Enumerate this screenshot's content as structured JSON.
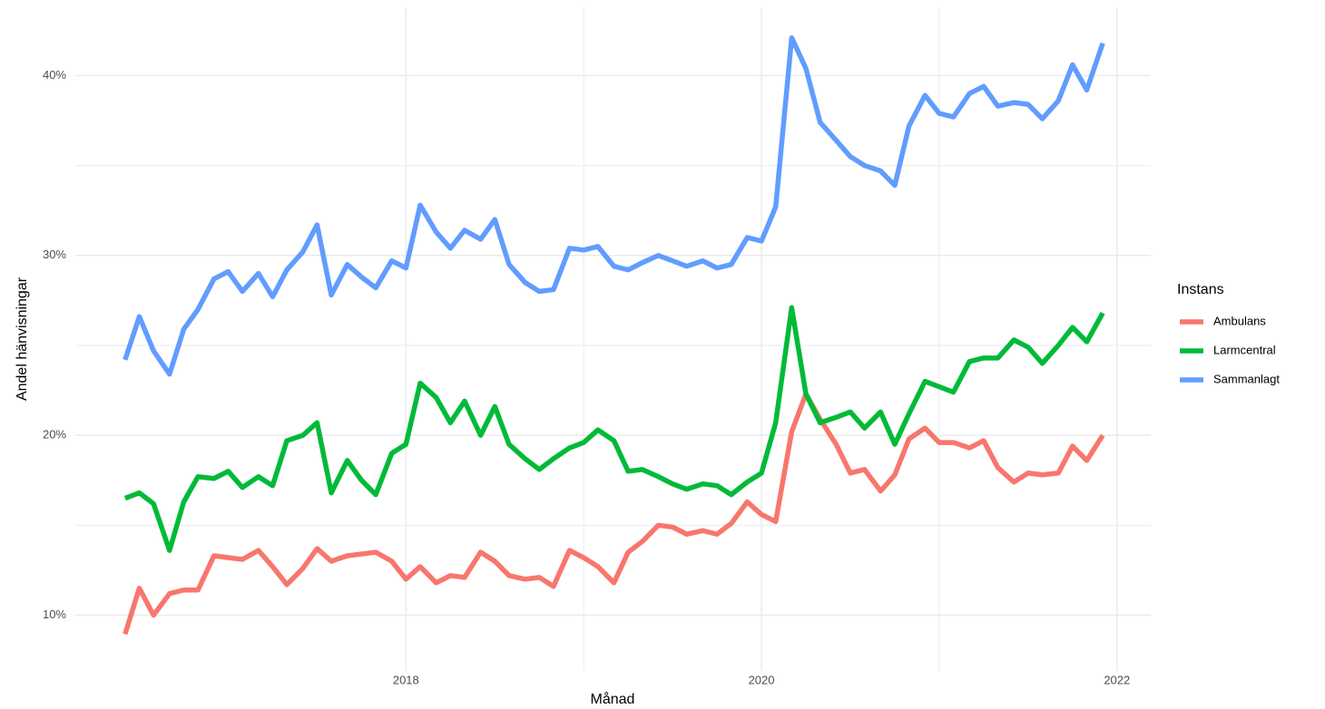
{
  "chart_data": {
    "type": "line",
    "xlabel": "Månad",
    "ylabel": "Andel hänvisningar",
    "legend_title": "Instans",
    "legend": "right",
    "grid": true,
    "x": [
      2016.42,
      2016.5,
      2016.58,
      2016.67,
      2016.75,
      2016.83,
      2016.92,
      2017,
      2017.08,
      2017.17,
      2017.25,
      2017.33,
      2017.42,
      2017.5,
      2017.58,
      2017.67,
      2017.75,
      2017.83,
      2017.92,
      2018,
      2018.08,
      2018.17,
      2018.25,
      2018.33,
      2018.42,
      2018.5,
      2018.58,
      2018.67,
      2018.75,
      2018.83,
      2018.92,
      2019,
      2019.08,
      2019.17,
      2019.25,
      2019.33,
      2019.42,
      2019.5,
      2019.58,
      2019.67,
      2019.75,
      2019.83,
      2019.92,
      2020,
      2020.08,
      2020.17,
      2020.25,
      2020.33,
      2020.42,
      2020.5,
      2020.58,
      2020.67,
      2020.75,
      2020.83,
      2020.92,
      2021,
      2021.08,
      2021.17,
      2021.25,
      2021.33,
      2021.42,
      2021.5,
      2021.58,
      2021.67,
      2021.75,
      2021.83,
      2021.92
    ],
    "xlim": [
      2016.14,
      2022.19
    ],
    "xticks": [
      2018,
      2020,
      2022
    ],
    "ylim": [
      6.9,
      43.8
    ],
    "yticks": [
      {
        "value": 10,
        "label": "10%"
      },
      {
        "value": 20,
        "label": "20%"
      },
      {
        "value": 30,
        "label": "30%"
      },
      {
        "value": 40,
        "label": "40%"
      }
    ],
    "series": [
      {
        "name": "Ambulans",
        "color": "#f8766d",
        "values": [
          8.95,
          11.5,
          10.0,
          11.2,
          11.4,
          11.4,
          13.3,
          13.2,
          13.1,
          13.6,
          12.7,
          11.7,
          12.6,
          13.7,
          13.0,
          13.3,
          13.4,
          13.5,
          13.0,
          12.0,
          12.7,
          11.8,
          12.2,
          12.1,
          13.5,
          13.0,
          12.2,
          12.0,
          12.1,
          11.6,
          13.6,
          13.2,
          12.7,
          11.8,
          13.5,
          14.1,
          15.0,
          14.9,
          14.5,
          14.7,
          14.5,
          15.1,
          16.3,
          15.6,
          15.2,
          20.2,
          22.3,
          20.9,
          19.5,
          17.9,
          18.1,
          16.9,
          17.8,
          19.8,
          20.4,
          19.6,
          19.6,
          19.3,
          19.7,
          18.2,
          17.4,
          17.9,
          17.8,
          17.9,
          19.4,
          18.6,
          20.0
        ]
      },
      {
        "name": "Larmcentral",
        "color": "#00ba38",
        "values": [
          16.5,
          16.8,
          16.2,
          13.6,
          16.3,
          17.7,
          17.6,
          18.0,
          17.1,
          17.7,
          17.2,
          19.7,
          20.0,
          20.7,
          16.8,
          18.6,
          17.5,
          16.7,
          19.0,
          19.5,
          22.9,
          22.1,
          20.7,
          21.9,
          20.0,
          21.6,
          19.5,
          18.7,
          18.1,
          18.7,
          19.3,
          19.6,
          20.3,
          19.7,
          18.0,
          18.1,
          17.7,
          17.3,
          17.0,
          17.3,
          17.2,
          16.7,
          17.4,
          17.9,
          20.7,
          27.1,
          22.3,
          20.7,
          21.0,
          21.3,
          20.4,
          21.3,
          19.5,
          21.2,
          23.0,
          22.7,
          22.4,
          24.1,
          24.3,
          24.3,
          25.3,
          24.9,
          24.0,
          25.0,
          26.0,
          25.2,
          26.8
        ]
      },
      {
        "name": "Sammanlagt",
        "color": "#619cff",
        "values": [
          24.2,
          26.6,
          24.7,
          23.4,
          25.9,
          27.0,
          28.7,
          29.1,
          28.0,
          29.0,
          27.7,
          29.2,
          30.2,
          31.7,
          27.8,
          29.5,
          28.8,
          28.2,
          29.7,
          29.3,
          32.8,
          31.3,
          30.4,
          31.4,
          30.9,
          32.0,
          29.5,
          28.5,
          28.0,
          28.1,
          30.4,
          30.3,
          30.5,
          29.4,
          29.2,
          29.6,
          30.0,
          29.7,
          29.4,
          29.7,
          29.3,
          29.5,
          31.0,
          30.8,
          32.7,
          42.1,
          40.4,
          37.4,
          36.4,
          35.5,
          35.0,
          34.7,
          33.9,
          37.2,
          38.9,
          37.9,
          37.7,
          39.0,
          39.4,
          38.3,
          38.5,
          38.4,
          37.6,
          38.6,
          40.6,
          39.2,
          41.8
        ]
      }
    ]
  }
}
